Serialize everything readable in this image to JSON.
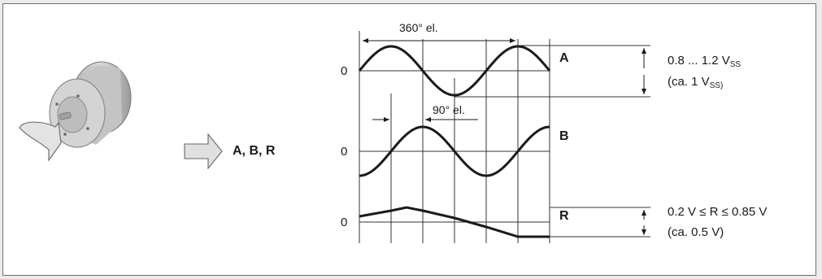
{
  "input_label": "A, B, R",
  "period_label": "360° el.",
  "phase_label": "90° el.",
  "zero_label": "0",
  "signals": [
    {
      "name": "A",
      "range_main": "0.8 ... 1.2 V",
      "range_sub": "SS",
      "typ_prefix": "(ca. 1 V",
      "typ_sub": "SS)"
    },
    {
      "name": "B"
    },
    {
      "name": "R",
      "range_text": "0.2 V ≤ R ≤ 0.85 V",
      "typ_text": "(ca. 0.5 V)"
    }
  ],
  "colors": {
    "line": "#1a1a1a",
    "frame": "#6e6e6e",
    "grid": "#333333",
    "encoder": "#8a8a8a"
  },
  "icons": [
    "rotary-encoder-icon",
    "rotation-arrow-icon",
    "right-arrow-icon"
  ]
}
